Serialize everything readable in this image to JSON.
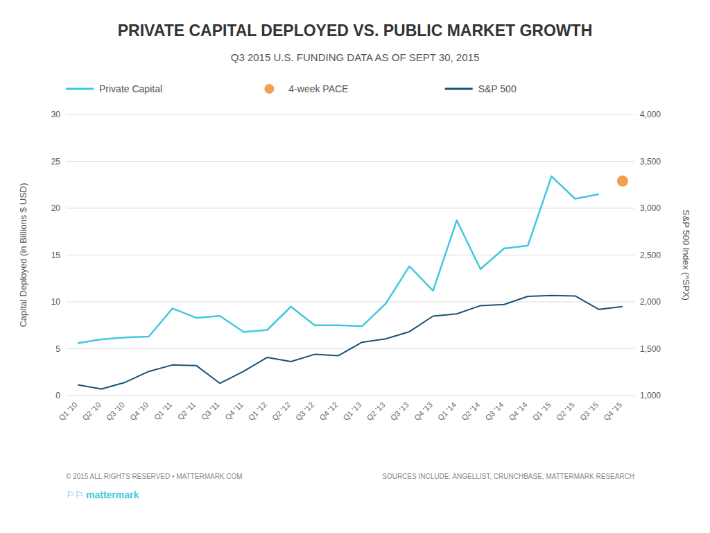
{
  "chart_data": {
    "type": "line",
    "title": "PRIVATE CAPITAL DEPLOYED VS. PUBLIC MARKET GROWTH",
    "subtitle": "Q3 2015 U.S. FUNDING DATA AS OF SEPT 30, 2015",
    "categories": [
      "Q1 '10",
      "Q2 '10",
      "Q3 '10",
      "Q4 '10",
      "Q1 '11",
      "Q2 '11",
      "Q3 '11",
      "Q4 '11",
      "Q1 '12",
      "Q2 '12",
      "Q3 '12",
      "Q4 '12",
      "Q1 '13",
      "Q2 '13",
      "Q3 '13",
      "Q4 '13",
      "Q1 '14",
      "Q2 '14",
      "Q3 '14",
      "Q4 '14",
      "Q1 '15",
      "Q2 '15",
      "Q3 '15",
      "Q4 '15"
    ],
    "series": [
      {
        "name": "Private Capital",
        "type": "line",
        "color": "#40c8e0",
        "axis": "y",
        "values": [
          5.6,
          6.0,
          6.2,
          6.3,
          9.3,
          8.3,
          8.5,
          6.8,
          7.0,
          9.5,
          7.5,
          7.5,
          7.4,
          9.8,
          13.8,
          11.2,
          18.7,
          13.5,
          15.7,
          16.0,
          23.4,
          21.0,
          21.5,
          null
        ]
      },
      {
        "name": "4-week PACE",
        "type": "scatter",
        "color": "#f0a050",
        "axis": "y",
        "values": [
          null,
          null,
          null,
          null,
          null,
          null,
          null,
          null,
          null,
          null,
          null,
          null,
          null,
          null,
          null,
          null,
          null,
          null,
          null,
          null,
          null,
          null,
          null,
          22.9
        ]
      },
      {
        "name": "S&P 500",
        "type": "line",
        "color": "#1a5276",
        "axis": "y2",
        "values": [
          1115,
          1070,
          1141,
          1258,
          1327,
          1321,
          1131,
          1258,
          1408,
          1363,
          1440,
          1426,
          1569,
          1606,
          1682,
          1848,
          1872,
          1960,
          1972,
          2059,
          2068,
          2063,
          1920,
          1950
        ]
      }
    ],
    "ylim": [
      0,
      30
    ],
    "yticks": [
      0,
      5,
      10,
      15,
      20,
      25,
      30
    ],
    "y2lim": [
      1000,
      4000
    ],
    "y2ticks": [
      {
        "value": 1000,
        "label": "1,000"
      },
      {
        "value": 1500,
        "label": "1,500"
      },
      {
        "value": 2000,
        "label": "2,000"
      },
      {
        "value": 2500,
        "label": "2,500"
      },
      {
        "value": 3000,
        "label": "3,000"
      },
      {
        "value": 3500,
        "label": "3,500"
      },
      {
        "value": 4000,
        "label": "4,000"
      }
    ],
    "ylabel": "Capital Deployed (in Billions $ USD)",
    "y2label": "S&P 500 Index (^SPX)",
    "grid": true,
    "legend": "top",
    "annotations": [
      {
        "text": "© 2015 ALL RIGHTS RESERVED  •  MATTERMARK.COM"
      },
      {
        "text": "SOURCES INCLUDE: ANGELLIST, CRUNCHBASE, MATTERMARK RESEARCH"
      },
      {
        "text": "⚐⚐ mattermark",
        "color": "#40c8e0"
      }
    ]
  }
}
